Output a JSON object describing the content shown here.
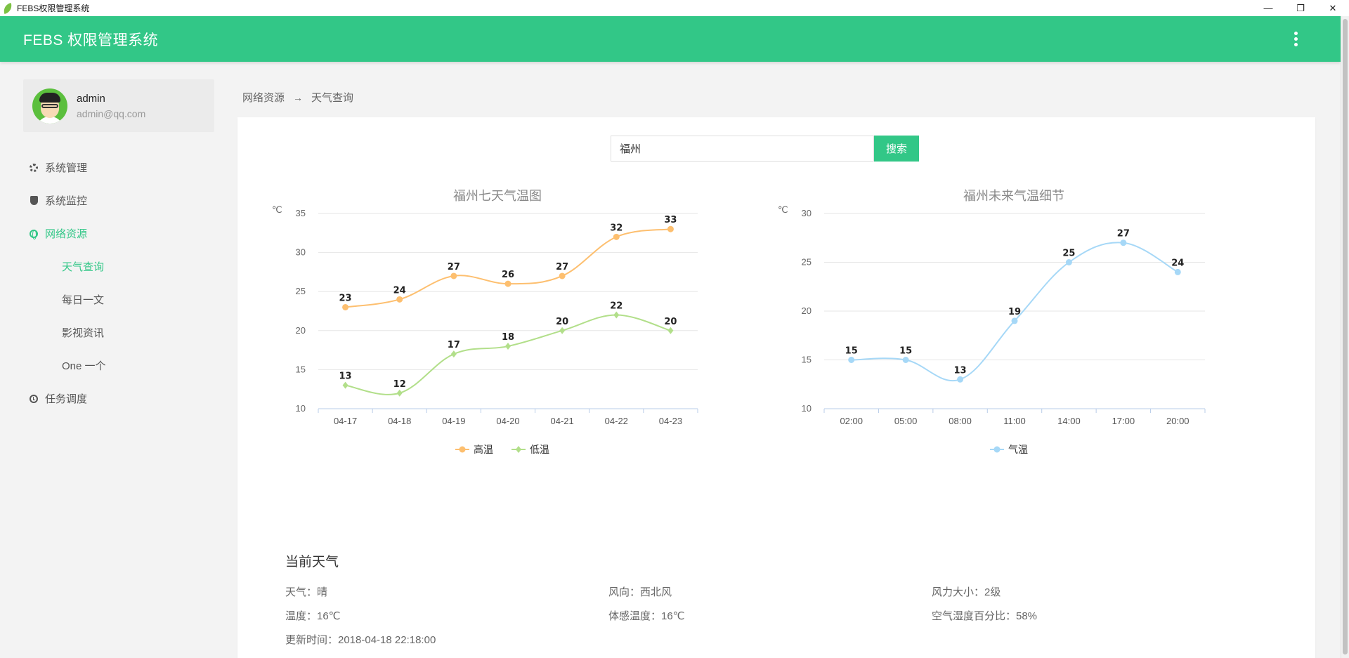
{
  "window": {
    "title": "FEBS权限管理系统",
    "min": "—",
    "max": "❐",
    "close": "✕"
  },
  "header": {
    "brand": "FEBS 权限管理系统"
  },
  "user": {
    "name": "admin",
    "email": "admin@qq.com"
  },
  "menu": [
    {
      "label": "系统管理",
      "icon": "gear-icon"
    },
    {
      "label": "系统监控",
      "icon": "shield-icon"
    },
    {
      "label": "网络资源",
      "icon": "globe-icon"
    },
    {
      "label": "任务调度",
      "icon": "clock-icon"
    }
  ],
  "submenu": [
    "天气查询",
    "每日一文",
    "影视资讯",
    "One 一个"
  ],
  "breadcrumb": {
    "parent": "网络资源",
    "sep": "→",
    "current": "天气查询"
  },
  "search": {
    "value": "福州",
    "button": "搜索"
  },
  "chart_data": [
    {
      "type": "line",
      "title": "福州七天气温图",
      "ylabel": "℃",
      "categories": [
        "04-17",
        "04-18",
        "04-19",
        "04-20",
        "04-21",
        "04-22",
        "04-23"
      ],
      "series": [
        {
          "name": "高温",
          "values": [
            23,
            24,
            27,
            26,
            27,
            32,
            33
          ],
          "color": "#fdbf6f",
          "marker": "circle"
        },
        {
          "name": "低温",
          "values": [
            13,
            12,
            17,
            18,
            20,
            22,
            20
          ],
          "color": "#b2df8a",
          "marker": "diamond"
        }
      ],
      "ylim": [
        10,
        35
      ],
      "yticks": [
        10,
        15,
        20,
        25,
        30,
        35
      ],
      "grid": true,
      "legend": "bottom",
      "smooth": true
    },
    {
      "type": "line",
      "title": "福州未来气温细节",
      "ylabel": "℃",
      "categories": [
        "02:00",
        "05:00",
        "08:00",
        "11:00",
        "14:00",
        "17:00",
        "20:00"
      ],
      "series": [
        {
          "name": "气温",
          "values": [
            15,
            15,
            13,
            19,
            25,
            27,
            24
          ],
          "color": "#a6d8f7",
          "marker": "circle"
        }
      ],
      "ylim": [
        10,
        30
      ],
      "yticks": [
        10,
        15,
        20,
        25,
        30
      ],
      "grid": true,
      "legend": "bottom",
      "smooth": true
    }
  ],
  "current": {
    "heading": "当前天气",
    "weather": "天气：晴",
    "wind_dir": "风向：西北风",
    "wind_power": "风力大小：2级",
    "temp": "温度：16℃",
    "feels_like": "体感温度：16℃",
    "humidity": "空气湿度百分比：58%",
    "updated": "更新时间：2018-04-18 22:18:00"
  },
  "colors": {
    "primary": "#32c787",
    "background": "#f3f3f3"
  }
}
